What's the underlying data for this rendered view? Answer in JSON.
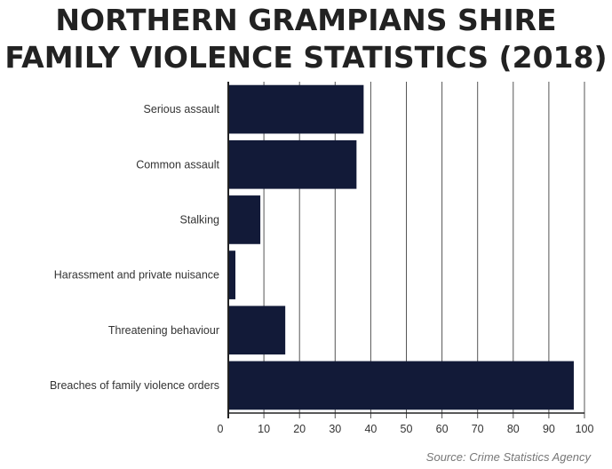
{
  "chart_data": {
    "type": "bar",
    "orientation": "horizontal",
    "title_lines": [
      "NORTHERN GRAMPIANS SHIRE",
      "FAMILY VIOLENCE STATISTICS (2018)"
    ],
    "categories": [
      "Serious assault",
      "Common assault",
      "Stalking",
      "Harassment and private nuisance",
      "Threatening behaviour",
      "Breaches of family violence orders"
    ],
    "values": [
      38,
      36,
      9,
      2,
      16,
      97
    ],
    "xlim": [
      0,
      100
    ],
    "xticks": [
      0,
      10,
      20,
      30,
      40,
      50,
      60,
      70,
      80,
      90,
      100
    ],
    "grid": "vertical",
    "bar_color": "#121a38",
    "source": "Source: Crime Statistics Agency"
  }
}
